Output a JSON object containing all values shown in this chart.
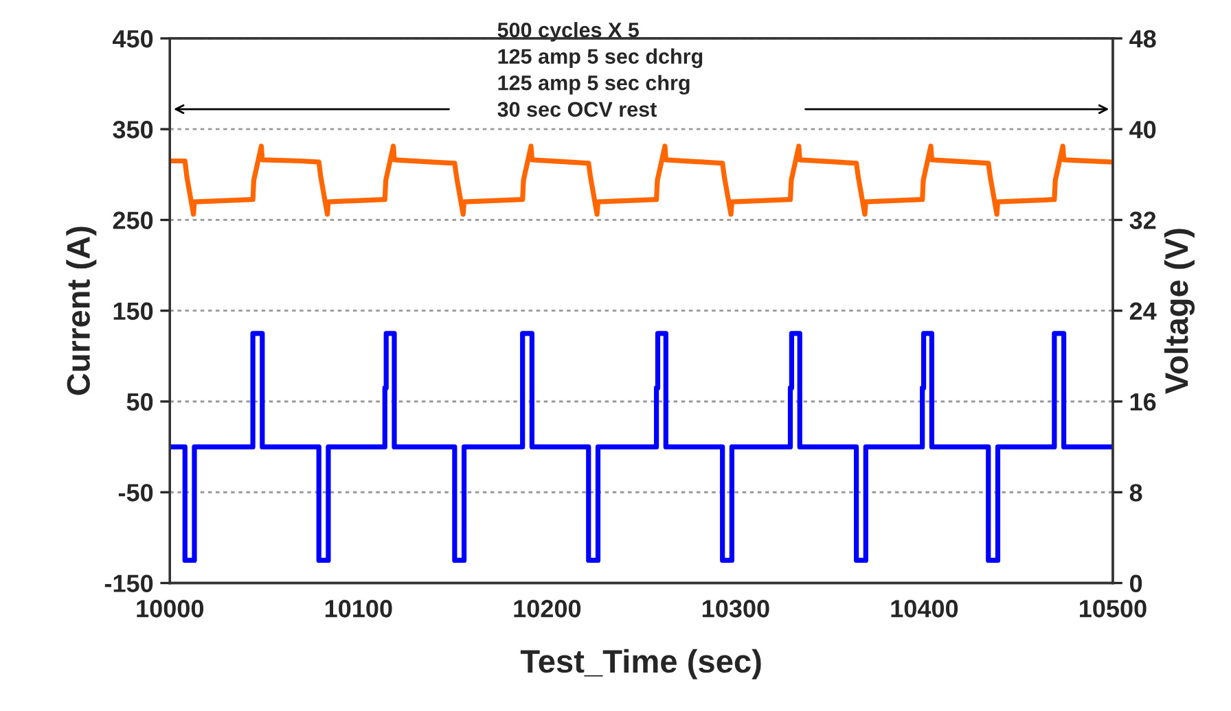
{
  "chart_data": {
    "type": "line",
    "xlabel": "Test_Time (sec)",
    "ylabel": "Current (A)",
    "y2label": "Voltage (V)",
    "xlim": [
      10000,
      10500
    ],
    "xticks": [
      10000,
      10100,
      10200,
      10300,
      10400,
      10500
    ],
    "ylim": [
      -150,
      450
    ],
    "yticks": [
      -150,
      -50,
      50,
      150,
      250,
      350,
      450
    ],
    "y2lim": [
      0,
      48
    ],
    "y2ticks": [
      0,
      8,
      16,
      24,
      32,
      40,
      48
    ],
    "grid": "y",
    "line_style": "solid",
    "marker": "none",
    "annotations": [
      "500 cycles X 5\n125 amp 5 sec dchrg\n125 amp 5 sec chrg\n30 sec OCV rest"
    ],
    "series": [
      {
        "color": "#0000ff",
        "axis": "y",
        "x": [
          10000,
          10008,
          10008,
          10013,
          10013,
          10044,
          10044,
          10049,
          10049,
          10079,
          10079,
          10084,
          10084,
          10114,
          10114,
          10114.7,
          10114.7,
          10119,
          10119,
          10151,
          10151,
          10156,
          10156,
          10187,
          10187,
          10192,
          10192,
          10222,
          10222,
          10227,
          10227,
          10258,
          10258,
          10258.7,
          10258.7,
          10263,
          10263,
          10293,
          10293,
          10298,
          10298,
          10329,
          10329,
          10329.7,
          10329.7,
          10334,
          10334,
          10364,
          10364,
          10369,
          10369,
          10399,
          10399,
          10399.7,
          10399.7,
          10404,
          10404,
          10434,
          10434,
          10439,
          10439,
          10469,
          10469,
          10474,
          10474,
          10500
        ],
        "values": [
          0,
          0,
          -125,
          -125,
          0,
          0,
          125,
          125,
          0,
          0,
          -125,
          -125,
          0,
          0,
          65,
          65,
          125,
          125,
          0,
          0,
          -125,
          -125,
          0,
          0,
          125,
          125,
          0,
          0,
          -125,
          -125,
          0,
          0,
          65,
          65,
          125,
          125,
          0,
          0,
          -125,
          -125,
          0,
          0,
          65,
          65,
          125,
          125,
          0,
          0,
          -125,
          -125,
          0,
          0,
          65,
          65,
          125,
          125,
          0,
          0,
          -125,
          -125,
          0,
          0,
          125,
          125,
          0,
          0
        ]
      },
      {
        "color": "#ff6600",
        "axis": "y2",
        "x": [
          10000,
          10008,
          10009,
          10012.5,
          10013,
          10044,
          10044.5,
          10048.5,
          10049,
          10069,
          10079,
          10080,
          10083.5,
          10084,
          10114,
          10114.5,
          10118.5,
          10119,
          10139,
          10151,
          10152,
          10155.5,
          10156,
          10187,
          10187.5,
          10191.5,
          10192,
          10212,
          10222,
          10223,
          10226.5,
          10227,
          10258,
          10258.5,
          10262.5,
          10263,
          10283,
          10293,
          10294,
          10297.5,
          10298,
          10329,
          10329.5,
          10333.5,
          10334,
          10354,
          10364,
          10365,
          10368.5,
          10369,
          10399,
          10399.5,
          10403.5,
          10404,
          10424,
          10434,
          10435,
          10438.5,
          10439,
          10469,
          10469.5,
          10473.5,
          10474,
          10500
        ],
        "values": [
          37.2,
          37.2,
          35.8,
          32.5,
          33.6,
          33.8,
          35.5,
          38.5,
          37.3,
          37.2,
          37.1,
          35.8,
          32.5,
          33.6,
          33.8,
          35.5,
          38.5,
          37.3,
          37.1,
          37.0,
          35.8,
          32.5,
          33.6,
          33.8,
          35.5,
          38.5,
          37.3,
          37.1,
          37.0,
          35.8,
          32.5,
          33.6,
          33.8,
          35.5,
          38.5,
          37.3,
          37.1,
          37.0,
          35.8,
          32.5,
          33.6,
          33.8,
          35.5,
          38.5,
          37.3,
          37.1,
          37.0,
          35.8,
          32.5,
          33.6,
          33.8,
          35.5,
          38.5,
          37.3,
          37.1,
          37.0,
          35.8,
          32.5,
          33.6,
          33.8,
          35.5,
          38.5,
          37.3,
          37.1
        ]
      }
    ]
  }
}
